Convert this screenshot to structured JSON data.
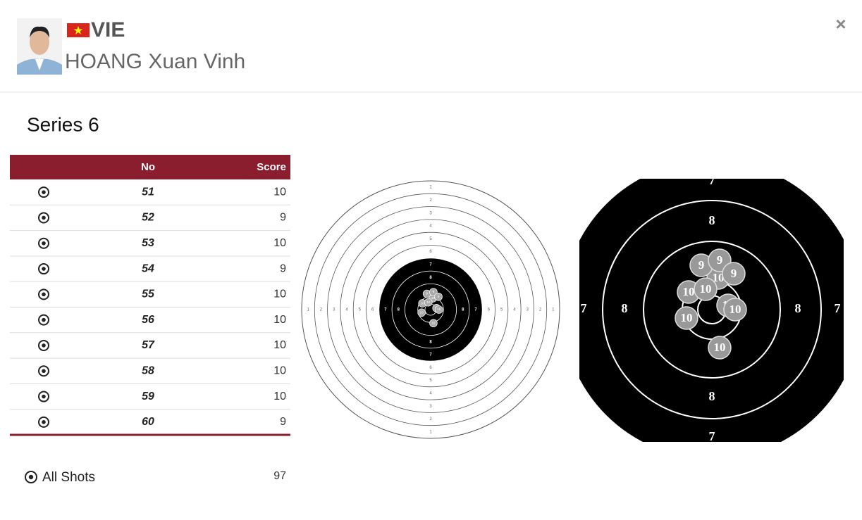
{
  "header": {
    "country": "VIE",
    "name": "HOANG Xuan Vinh",
    "close": "×"
  },
  "series_title": "Series 6",
  "table": {
    "columns": [
      "No",
      "Score"
    ],
    "rows": [
      {
        "no": 51,
        "score": 10
      },
      {
        "no": 52,
        "score": 9
      },
      {
        "no": 53,
        "score": 10
      },
      {
        "no": 54,
        "score": 9
      },
      {
        "no": 55,
        "score": 10
      },
      {
        "no": 56,
        "score": 10
      },
      {
        "no": 57,
        "score": 10
      },
      {
        "no": 58,
        "score": 10
      },
      {
        "no": 59,
        "score": 10
      },
      {
        "no": 60,
        "score": 9
      }
    ]
  },
  "total": {
    "label": "All Shots",
    "score": 97
  },
  "target": {
    "ring_labels": [
      1,
      2,
      3,
      4,
      5,
      6,
      7,
      8
    ]
  }
}
